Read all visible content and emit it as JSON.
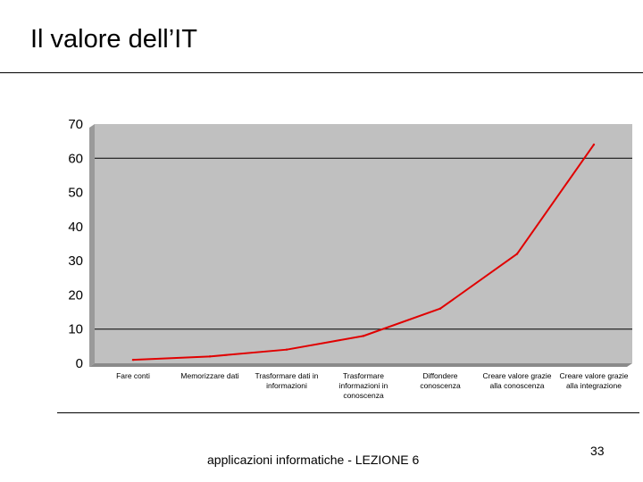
{
  "slide": {
    "title": "Il valore dell’IT",
    "footer": "applicazioni informatiche - LEZIONE 6",
    "page_number": "33"
  },
  "colors": {
    "plot_background": "#c0c0c0",
    "line": "#e00000",
    "gridline": "#000000"
  },
  "chart_data": {
    "type": "line",
    "title": "",
    "xlabel": "",
    "ylabel": "",
    "categories": [
      "Fare conti",
      "Memorizzare dati",
      "Trasformare dati in informazioni",
      "Trasformare informazioni in conoscenza",
      "Diffondere conoscenza",
      "Creare valore grazie alla conoscenza",
      "Creare valore grazie alla integrazione"
    ],
    "category_lines": [
      [
        "Fare conti"
      ],
      [
        "Memorizzare dati"
      ],
      [
        "Trasformare dati in",
        "informazioni"
      ],
      [
        "Trasformare",
        "informazioni in",
        "conoscenza"
      ],
      [
        "Diffondere",
        "conoscenza"
      ],
      [
        "Creare valore grazie",
        "alla conoscenza"
      ],
      [
        "Creare valore grazie",
        "alla integrazione"
      ]
    ],
    "values": [
      1,
      2,
      4,
      8,
      16,
      32,
      64
    ],
    "ylim": [
      0,
      70
    ],
    "yticks": [
      0,
      10,
      20,
      30,
      40,
      50,
      60,
      70
    ],
    "gridlines": [
      10,
      60
    ],
    "legend": "none"
  }
}
